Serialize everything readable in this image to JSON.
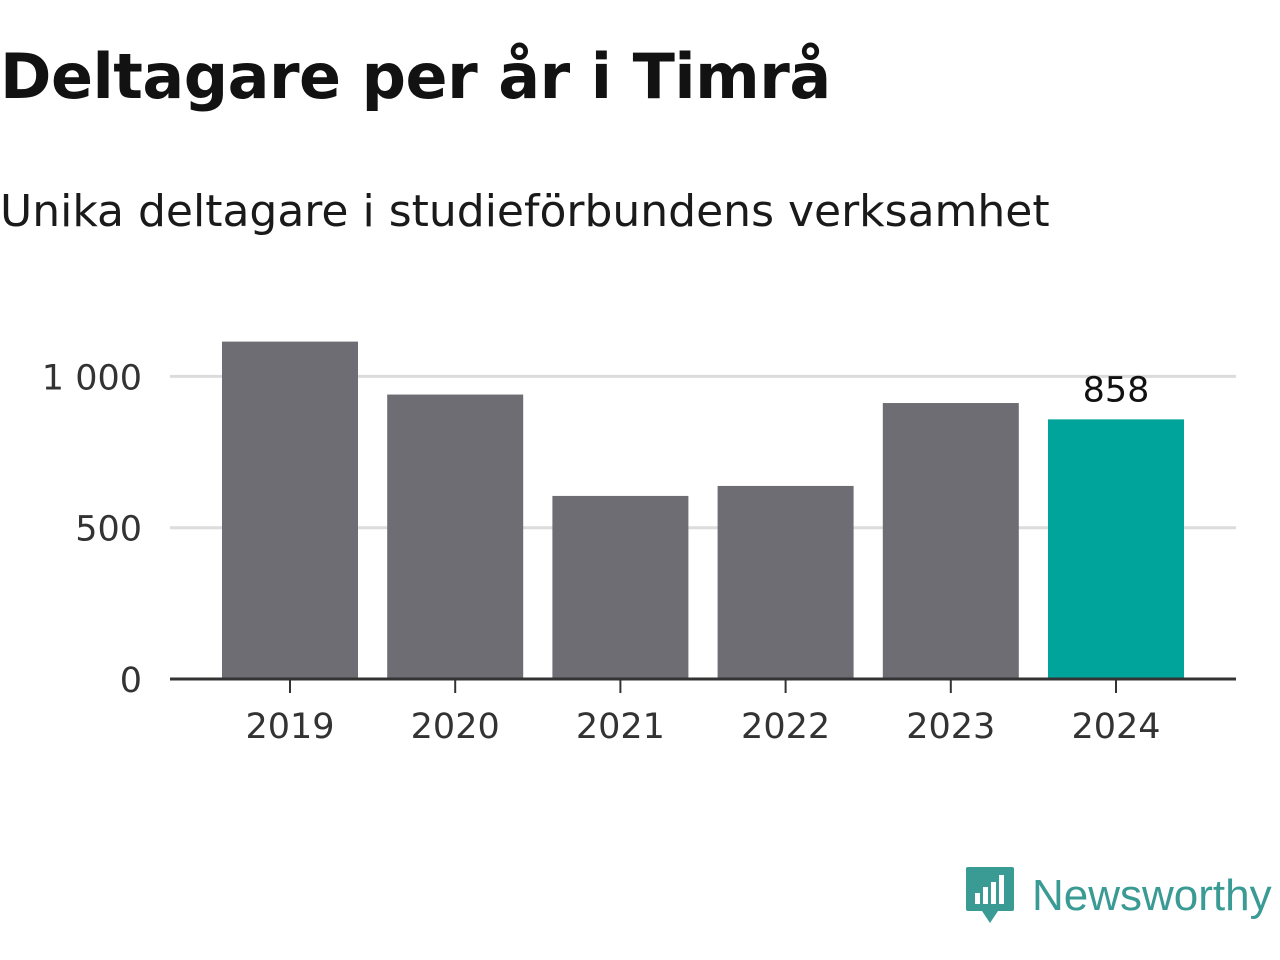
{
  "title": "Deltagare per år i Timrå",
  "subtitle": "Unika deltagare i studieförbundens verksamhet",
  "brand": {
    "name": "Newsworthy",
    "icon": "bar-chart-speech-bubble-icon",
    "color": "#3a9a94"
  },
  "colors": {
    "bar_default": "#6e6d74",
    "bar_highlight": "#00a49a",
    "grid": "#dcdcdc",
    "axis": "#333333",
    "tick_text": "#333333",
    "data_label": "#111111"
  },
  "chart_data": {
    "type": "bar",
    "title": "Deltagare per år i Timrå",
    "subtitle": "Unika deltagare i studieförbundens verksamhet",
    "categories": [
      "2019",
      "2020",
      "2021",
      "2022",
      "2023",
      "2024"
    ],
    "values": [
      1115,
      940,
      605,
      638,
      912,
      858
    ],
    "highlight_index": 5,
    "data_labels": [
      {
        "category": "2024",
        "text": "858"
      }
    ],
    "xlabel": "",
    "ylabel": "",
    "ylim": [
      0,
      1150
    ],
    "yticks": [
      0,
      500,
      1000
    ],
    "ytick_labels": [
      "0",
      "500",
      "1 000"
    ],
    "grid": true,
    "legend": "none"
  }
}
